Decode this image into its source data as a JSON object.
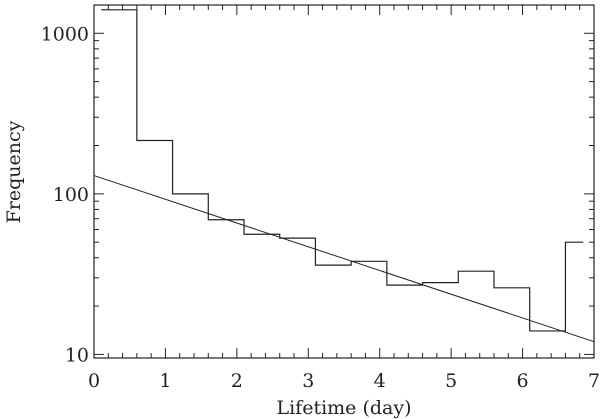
{
  "chart_data": {
    "type": "line",
    "title": "",
    "xlabel": "Lifetime (day)",
    "ylabel": "Frequency",
    "xlim": [
      0,
      7
    ],
    "ylim": [
      9.5,
      1500
    ],
    "yscale": "log",
    "grid": false,
    "x_ticks": [
      "0",
      "1",
      "2",
      "3",
      "4",
      "5",
      "6",
      "7"
    ],
    "y_ticks": [
      "10",
      "100",
      "1000"
    ],
    "series": [
      {
        "style": "histogram-step",
        "bins": [
          0.1,
          0.6,
          1.1,
          1.6,
          2.1,
          2.6,
          3.1,
          3.6,
          4.1,
          4.6,
          5.1,
          5.6,
          6.1,
          6.6,
          6.85
        ],
        "values": [
          1400,
          215,
          100,
          69,
          56,
          53,
          36,
          38,
          27,
          28,
          33,
          26,
          14,
          50
        ]
      },
      {
        "style": "fit-line",
        "x": [
          0,
          7
        ],
        "y": [
          130,
          12
        ]
      }
    ],
    "color": "#222222"
  }
}
